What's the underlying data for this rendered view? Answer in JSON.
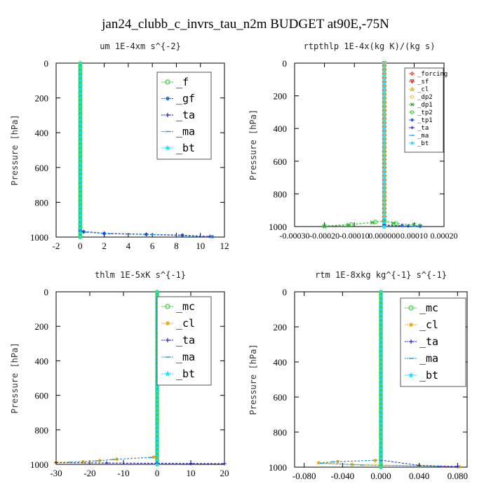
{
  "figure_title": "jan24_clubb_c_invrs_tau_n2m  BUDGET at90E,-75N",
  "colors": {
    "forcing": "#e04a3a",
    "sf": "#d81b1b",
    "cl": "#f0a800",
    "dp2": "#e8d060",
    "dp1": "#2f9e2f",
    "tp2": "#3cd03c",
    "tp1": "#2a64c8",
    "ta": "#1a1ad0",
    "ma": "#1a90e0",
    "bt": "#12e0ff",
    "f": "#3cd03c",
    "gf": "#2a64c8",
    "mc": "#3cd03c",
    "band": "#22c840"
  },
  "chart_data": [
    {
      "type": "line",
      "title": "um  1E-4xm s^{-2}",
      "ylabel": "Pressure [hPa]",
      "xlim": [
        -2,
        12
      ],
      "ylim": [
        1000,
        0
      ],
      "xticks": [
        -2,
        0,
        2,
        4,
        6,
        8,
        10,
        12
      ],
      "xtick_labels": [
        "-2",
        "0",
        "2",
        "4",
        "6",
        "8",
        "10",
        "12"
      ],
      "yticks": [
        0,
        200,
        400,
        600,
        800,
        1000
      ],
      "ytick_labels": [
        "0",
        "200",
        "400",
        "600",
        "800",
        "1000"
      ],
      "legend_pos": "top-right",
      "legend_size": "large",
      "series": [
        {
          "name": "_f",
          "key": "f",
          "marker": "circle-open",
          "points": [
            [
              0,
              0
            ],
            [
              0,
              1000
            ]
          ]
        },
        {
          "name": "_gf",
          "key": "gf",
          "marker": "star",
          "points": [
            [
              0,
              960
            ],
            [
              0.3,
              970
            ],
            [
              2,
              980
            ],
            [
              5.5,
              985
            ],
            [
              8.5,
              990
            ],
            [
              11,
              998
            ]
          ]
        },
        {
          "name": "_ta",
          "key": "ta",
          "marker": "plus",
          "points": [
            [
              0,
              960
            ],
            [
              0.3,
              968
            ],
            [
              2,
              978
            ],
            [
              5.5,
              984
            ],
            [
              8.5,
              989
            ],
            [
              10.8,
              996
            ]
          ]
        },
        {
          "name": "_ma",
          "key": "ma",
          "marker": "dash",
          "points": [
            [
              0,
              960
            ],
            [
              0.5,
              972
            ],
            [
              2.5,
              981
            ],
            [
              6,
              986
            ],
            [
              11,
              999
            ]
          ]
        },
        {
          "name": "_bt",
          "key": "bt",
          "marker": "star-filled",
          "points": [
            [
              0,
              0
            ],
            [
              0,
              1000
            ]
          ]
        }
      ]
    },
    {
      "type": "line",
      "title": "rtpthlp  1E-4x(kg K)/(kg s)",
      "ylabel": "Pressure [hPa]",
      "xlim": [
        -0.0003,
        0.0002
      ],
      "ylim": [
        1000,
        0
      ],
      "xticks": [
        -0.0003,
        -0.0002,
        -0.0001,
        0,
        0.0001,
        0.0002
      ],
      "xtick_labels": [
        "-0.00030",
        "-0.00020",
        "-0.00010",
        "0.000000",
        "0.00010",
        "0.00020"
      ],
      "yticks": [
        0,
        200,
        400,
        600,
        800,
        1000
      ],
      "ytick_labels": [
        "0",
        "200",
        "400",
        "600",
        "800",
        "1000"
      ],
      "legend_pos": "top-right",
      "legend_size": "small",
      "series": [
        {
          "name": "_forcing",
          "key": "forcing",
          "marker": "diamond",
          "points": [
            [
              0,
              0
            ],
            [
              0,
              1000
            ]
          ]
        },
        {
          "name": "_sf",
          "key": "sf",
          "marker": "triangle-down",
          "points": [
            [
              0,
              0
            ],
            [
              0,
              1000
            ]
          ]
        },
        {
          "name": "_cl",
          "key": "cl",
          "marker": "triangle-up",
          "points": [
            [
              0,
              0
            ],
            [
              0,
              1000
            ]
          ]
        },
        {
          "name": "_dp2",
          "key": "dp2",
          "marker": "circle-open",
          "points": [
            [
              0,
              0
            ],
            [
              0,
              1000
            ]
          ]
        },
        {
          "name": "_dp1",
          "key": "dp1",
          "marker": "x",
          "points": [
            [
              -0.0002,
              1000
            ],
            [
              -0.00012,
              990
            ],
            [
              -4e-05,
              975
            ],
            [
              0,
              965
            ],
            [
              3e-05,
              980
            ],
            [
              0.0001,
              990
            ]
          ]
        },
        {
          "name": "_tp2",
          "key": "tp2",
          "marker": "circle-open",
          "points": [
            [
              -0.0002,
              995
            ],
            [
              -0.00011,
              987
            ],
            [
              -3e-05,
              972
            ],
            [
              0,
              968
            ],
            [
              4e-05,
              982
            ],
            [
              0.00012,
              995
            ]
          ]
        },
        {
          "name": "_tp1",
          "key": "tp1",
          "marker": "star",
          "points": [
            [
              0,
              990
            ],
            [
              6e-05,
              995
            ],
            [
              0.00012,
              998
            ]
          ]
        },
        {
          "name": "_ta",
          "key": "ta",
          "marker": "plus",
          "points": [
            [
              0,
              992
            ],
            [
              8e-05,
              996
            ]
          ]
        },
        {
          "name": "_ma",
          "key": "ma",
          "marker": "dash",
          "points": [
            [
              0,
              994
            ],
            [
              0.0001,
              998
            ]
          ]
        },
        {
          "name": "_bt",
          "key": "bt",
          "marker": "star-filled",
          "points": [
            [
              0,
              0
            ],
            [
              0,
              1000
            ]
          ]
        }
      ]
    },
    {
      "type": "line",
      "title": "thlm  1E-5xK s^{-1}",
      "ylabel": "Pressure [hPa]",
      "xlim": [
        -30,
        20
      ],
      "ylim": [
        1000,
        0
      ],
      "xticks": [
        -30,
        -20,
        -10,
        0,
        10,
        20
      ],
      "xtick_labels": [
        "-30",
        "-20",
        "-10",
        "0",
        "10",
        "20"
      ],
      "yticks": [
        0,
        200,
        400,
        600,
        800,
        1000
      ],
      "ytick_labels": [
        "0",
        "200",
        "400",
        "600",
        "800",
        "1000"
      ],
      "legend_pos": "top-right",
      "legend_size": "large",
      "series": [
        {
          "name": "_mc",
          "key": "mc",
          "marker": "circle-open",
          "points": [
            [
              0,
              0
            ],
            [
              0,
              1000
            ]
          ]
        },
        {
          "name": "_cl",
          "key": "cl",
          "marker": "star",
          "points": [
            [
              0,
              955
            ],
            [
              -1,
              958
            ],
            [
              -12,
              970
            ],
            [
              -17,
              978
            ],
            [
              -22,
              985
            ],
            [
              -30,
              988
            ]
          ]
        },
        {
          "name": "_ta",
          "key": "ta",
          "marker": "plus",
          "points": [
            [
              -30,
              990
            ],
            [
              -15,
              992
            ],
            [
              0,
              994
            ],
            [
              10,
              995
            ],
            [
              20,
              996
            ]
          ]
        },
        {
          "name": "_ma",
          "key": "ma",
          "marker": "dash",
          "points": [
            [
              0,
              957
            ],
            [
              -2,
              960
            ],
            [
              -13,
              972
            ],
            [
              -18,
              980
            ],
            [
              -26,
              988
            ]
          ]
        },
        {
          "name": "_bt",
          "key": "bt",
          "marker": "star-filled",
          "points": [
            [
              0,
              0
            ],
            [
              0,
              1000
            ]
          ]
        }
      ]
    },
    {
      "type": "line",
      "title": "rtm  1E-8xkg kg^{-1} s^{-1}",
      "ylabel": "Pressure [hPa]",
      "xlim": [
        -0.09,
        0.09
      ],
      "ylim": [
        1000,
        0
      ],
      "xticks": [
        -0.08,
        -0.04,
        0,
        0.04,
        0.08
      ],
      "xtick_labels": [
        "-0.080",
        "-0.040",
        "0.000",
        "0.040",
        "0.080"
      ],
      "yticks": [
        0,
        200,
        400,
        600,
        800,
        1000
      ],
      "ytick_labels": [
        "0",
        "200",
        "400",
        "600",
        "800",
        "1000"
      ],
      "legend_pos": "top-right",
      "legend_size": "large",
      "series": [
        {
          "name": "_mc",
          "key": "mc",
          "marker": "circle-open",
          "points": [
            [
              0,
              0
            ],
            [
              0,
              1000
            ]
          ]
        },
        {
          "name": "_cl",
          "key": "cl",
          "marker": "star",
          "points": [
            [
              0,
              958
            ],
            [
              -0.006,
              962
            ],
            [
              -0.045,
              968
            ],
            [
              -0.065,
              975
            ],
            [
              -0.03,
              985
            ],
            [
              0.04,
              992
            ],
            [
              0.082,
              998
            ]
          ]
        },
        {
          "name": "_ta",
          "key": "ta",
          "marker": "plus",
          "points": [
            [
              0,
              960
            ],
            [
              0.04,
              990
            ],
            [
              0.08,
              996
            ]
          ]
        },
        {
          "name": "_ma",
          "key": "ma",
          "marker": "dash",
          "points": [
            [
              0,
              959
            ],
            [
              -0.05,
              970
            ],
            [
              -0.062,
              978
            ],
            [
              -0.02,
              988
            ],
            [
              0.06,
              995
            ]
          ]
        },
        {
          "name": "_bt",
          "key": "bt",
          "marker": "star-filled",
          "points": [
            [
              0,
              0
            ],
            [
              0,
              1000
            ]
          ]
        }
      ]
    }
  ]
}
